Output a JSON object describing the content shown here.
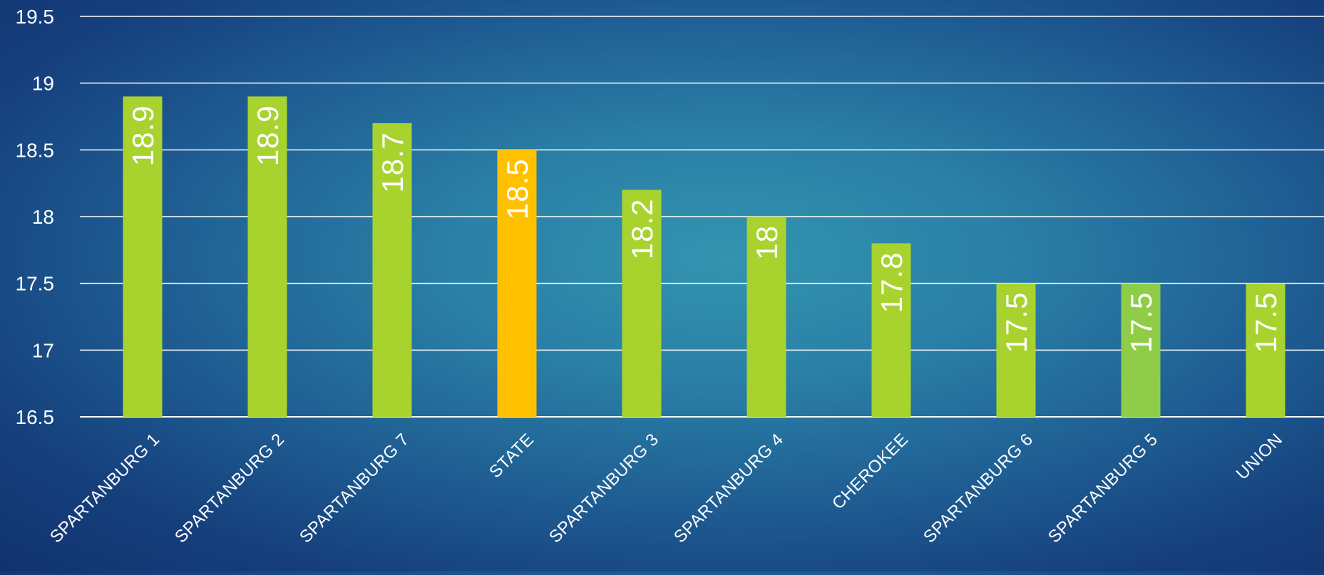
{
  "chart_data": {
    "type": "bar",
    "categories": [
      "SPARTANBURG 1",
      "SPARTANBURG 2",
      "SPARTANBURG 7",
      "STATE",
      "SPARTANBURG 3",
      "SPARTANBURG 4",
      "CHEROKEE",
      "SPARTANBURG 6",
      "SPARTANBURG 5",
      "UNION"
    ],
    "values": [
      18.9,
      18.9,
      18.7,
      18.5,
      18.2,
      18.0,
      17.8,
      17.5,
      17.5,
      17.5
    ],
    "data_labels": [
      "18.9",
      "18.9",
      "18.7",
      "18.5",
      "18.2",
      "18",
      "17.8",
      "17.5",
      "17.5",
      "17.5"
    ],
    "ylim": [
      16.5,
      19.5
    ],
    "yticks": [
      16.5,
      17,
      17.5,
      18,
      18.5,
      19,
      19.5
    ],
    "ytick_labels": [
      "16.5",
      "17",
      "17.5",
      "18",
      "18.5",
      "19",
      "19.5"
    ],
    "title": "",
    "xlabel": "",
    "ylabel": "",
    "grid": true,
    "legend": "none",
    "colors": {
      "bar": "#a8d32f",
      "highlight": "#ffc000",
      "alt": "#8fcd48",
      "gridline": "#ffffff",
      "text": "#ffffff"
    },
    "bar_colors": [
      "#a8d32f",
      "#a8d32f",
      "#a8d32f",
      "#ffc000",
      "#a8d32f",
      "#a8d32f",
      "#a8d32f",
      "#a8d32f",
      "#8fcd48",
      "#a8d32f"
    ]
  }
}
